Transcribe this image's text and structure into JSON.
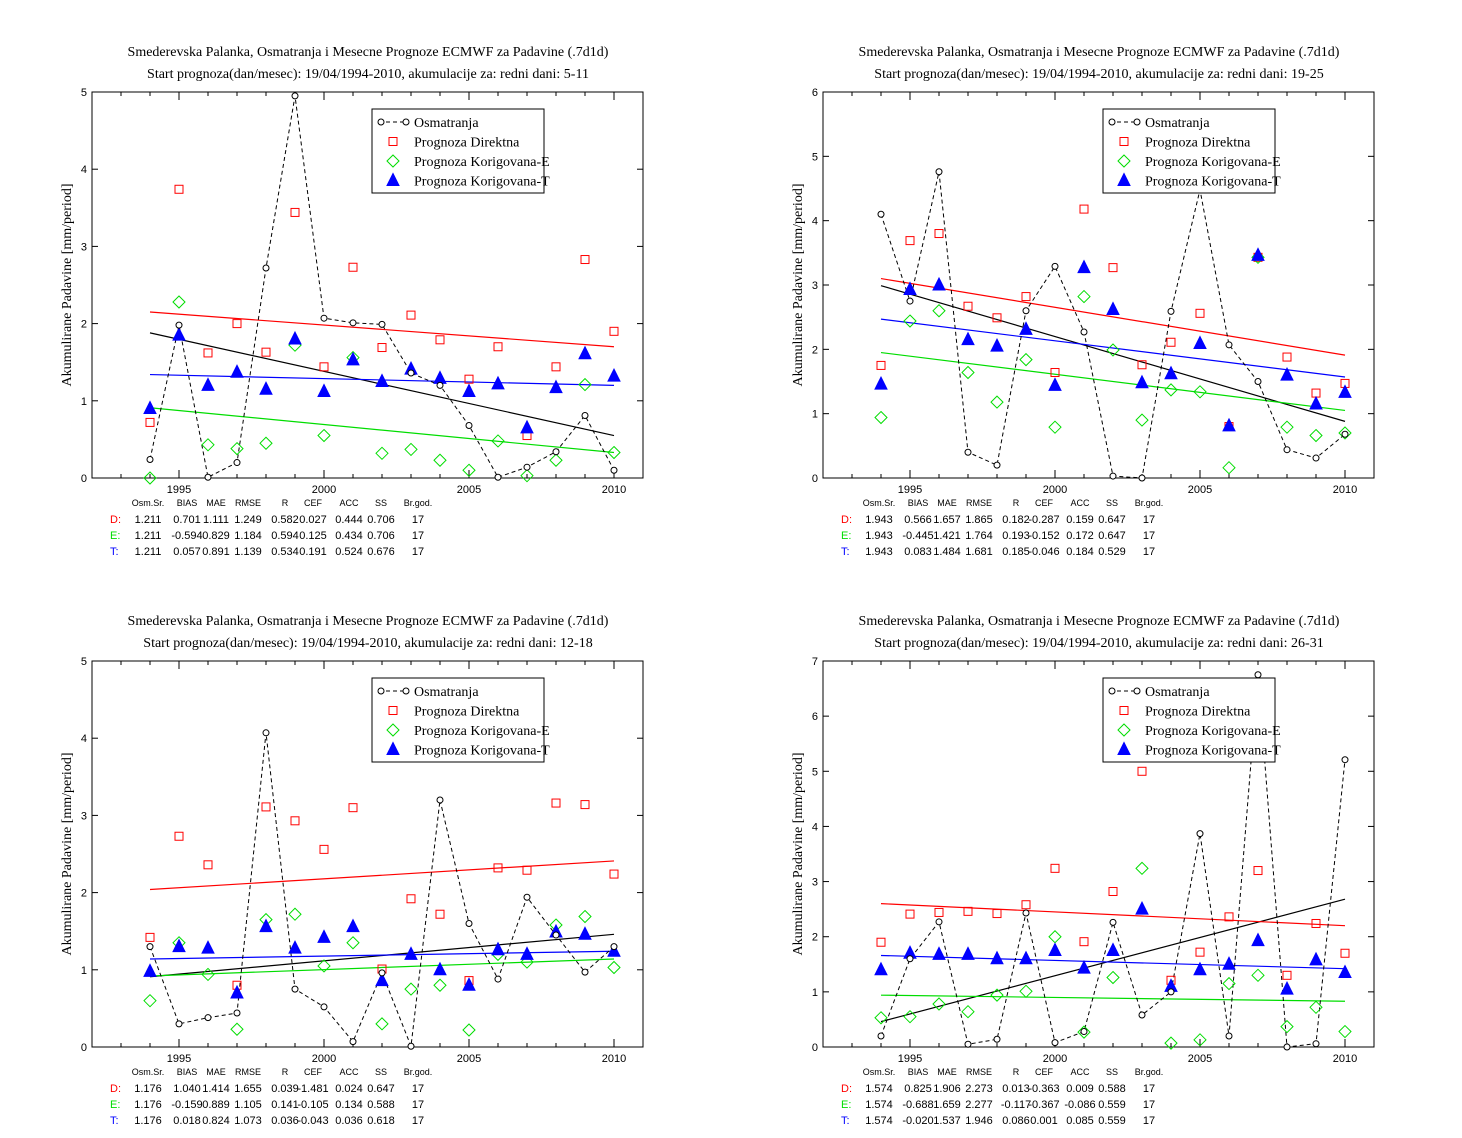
{
  "x_ticks": [
    "1995",
    "2000",
    "2005",
    "2010"
  ],
  "legend": [
    "Osmatranja",
    "Prognoza Direktna",
    "Prognoza Korigovana-E",
    "Prognoza Korigovana-T"
  ],
  "stat_headers": [
    "Osm.Sr.",
    "BIAS",
    "MAE",
    "RMSE",
    "R",
    "CEF",
    "ACC",
    "SS",
    "Br.god."
  ],
  "colors": {
    "obs": "#000000",
    "direct": "#ff0000",
    "corr_e": "#00dd00",
    "corr_t": "#0000ff"
  },
  "chart_data": [
    {
      "type": "scatter",
      "title": "Smederevska Palanka, Osmatranja i Mesecne Prognoze ECMWF za Padavine (.7d1d)",
      "subtitle": "Start prognoza(dan/mesec): 19/04/1994-2010, akumulacije za: redni dani: 5-11",
      "ylabel": "Akumulirane Padavine [mm/period]",
      "xlim": [
        1992,
        2011
      ],
      "ylim": [
        0,
        5
      ],
      "yticks": [
        "0",
        "1",
        "2",
        "3",
        "4",
        "5"
      ],
      "x": [
        1994,
        1995,
        1996,
        1997,
        1998,
        1999,
        2000,
        2001,
        2002,
        2003,
        2004,
        2005,
        2006,
        2007,
        2008,
        2009,
        2010
      ],
      "series": [
        {
          "name": "Osmatranja",
          "values": [
            0.24,
            1.98,
            0.01,
            0.2,
            2.72,
            4.95,
            2.07,
            2.01,
            1.99,
            1.36,
            1.2,
            0.68,
            0.01,
            0.14,
            0.34,
            0.81,
            0.1
          ]
        },
        {
          "name": "Prognoza Direktna",
          "values": [
            0.72,
            3.74,
            1.62,
            2.0,
            1.63,
            3.44,
            1.44,
            2.73,
            1.69,
            2.11,
            1.79,
            1.28,
            1.7,
            0.55,
            1.44,
            2.83,
            1.9
          ]
        },
        {
          "name": "Prognoza Korigovana-E",
          "values": [
            0.0,
            2.28,
            0.43,
            0.38,
            0.45,
            1.72,
            0.55,
            1.56,
            0.32,
            0.37,
            0.23,
            0.1,
            0.48,
            0.03,
            0.23,
            1.21,
            0.33
          ]
        },
        {
          "name": "Prognoza Korigovana-T",
          "values": [
            0.9,
            1.85,
            1.2,
            1.37,
            1.15,
            1.8,
            1.12,
            1.53,
            1.25,
            1.41,
            1.29,
            1.12,
            1.22,
            0.65,
            1.17,
            1.61,
            1.32
          ]
        }
      ],
      "trends": [
        [
          1.88,
          0.55
        ],
        [
          2.15,
          1.7
        ],
        [
          0.91,
          0.33
        ],
        [
          1.34,
          1.2
        ]
      ],
      "stats": [
        {
          "label": "D:",
          "values": [
            "1.211",
            "0.701",
            "1.111",
            "1.249",
            "0.582",
            "0.027",
            "0.444",
            "0.706",
            "17"
          ]
        },
        {
          "label": "E:",
          "values": [
            "1.211",
            "-0.594",
            "0.829",
            "1.184",
            "0.594",
            "0.125",
            "0.434",
            "0.706",
            "17"
          ]
        },
        {
          "label": "T:",
          "values": [
            "1.211",
            "0.057",
            "0.891",
            "1.139",
            "0.534",
            "0.191",
            "0.524",
            "0.676",
            "17"
          ]
        }
      ]
    },
    {
      "type": "scatter",
      "title": "Smederevska Palanka, Osmatranja i Mesecne Prognoze ECMWF za Padavine (.7d1d)",
      "subtitle": "Start prognoza(dan/mesec): 19/04/1994-2010, akumulacije za: redni dani: 19-25",
      "ylabel": "Akumulirane Padavine [mm/period]",
      "xlim": [
        1992,
        2011
      ],
      "ylim": [
        0,
        6
      ],
      "yticks": [
        "0",
        "1",
        "2",
        "3",
        "4",
        "5",
        "6"
      ],
      "x": [
        1994,
        1995,
        1996,
        1997,
        1998,
        1999,
        2000,
        2001,
        2002,
        2003,
        2004,
        2005,
        2006,
        2007,
        2008,
        2009,
        2010
      ],
      "series": [
        {
          "name": "Osmatranja",
          "values": [
            4.1,
            2.75,
            4.76,
            0.4,
            0.2,
            2.6,
            3.29,
            2.27,
            0.03,
            0.0,
            2.59,
            4.48,
            2.07,
            1.5,
            0.44,
            0.31,
            0.68
          ]
        },
        {
          "name": "Prognoza Direktna",
          "values": [
            1.75,
            3.69,
            3.8,
            2.67,
            2.49,
            2.82,
            1.64,
            4.18,
            3.27,
            1.76,
            2.11,
            2.56,
            0.8,
            3.43,
            1.88,
            1.32,
            1.47
          ]
        },
        {
          "name": "Prognoza Korigovana-E",
          "values": [
            0.94,
            2.44,
            2.6,
            1.64,
            1.18,
            1.84,
            0.79,
            2.82,
            1.99,
            0.9,
            1.37,
            1.34,
            0.16,
            3.43,
            0.79,
            0.66,
            0.7
          ]
        },
        {
          "name": "Prognoza Korigovana-T",
          "values": [
            1.46,
            2.93,
            3.0,
            2.15,
            2.05,
            2.31,
            1.44,
            3.27,
            2.62,
            1.48,
            1.62,
            2.09,
            0.81,
            3.46,
            1.6,
            1.15,
            1.33
          ]
        }
      ],
      "trends": [
        [
          2.99,
          0.88
        ],
        [
          3.1,
          1.91
        ],
        [
          1.95,
          1.05
        ],
        [
          2.47,
          1.57
        ]
      ],
      "stats": [
        {
          "label": "D:",
          "values": [
            "1.943",
            "0.566",
            "1.657",
            "1.865",
            "0.182",
            "-0.287",
            "0.159",
            "0.647",
            "17"
          ]
        },
        {
          "label": "E:",
          "values": [
            "1.943",
            "-0.445",
            "1.421",
            "1.764",
            "0.193",
            "-0.152",
            "0.172",
            "0.647",
            "17"
          ]
        },
        {
          "label": "T:",
          "values": [
            "1.943",
            "0.083",
            "1.484",
            "1.681",
            "0.185",
            "-0.046",
            "0.184",
            "0.529",
            "17"
          ]
        }
      ]
    },
    {
      "type": "scatter",
      "title": "Smederevska Palanka, Osmatranja i Mesecne Prognoze ECMWF za Padavine (.7d1d)",
      "subtitle": "Start prognoza(dan/mesec): 19/04/1994-2010, akumulacije za: redni dani: 12-18",
      "ylabel": "Akumulirane Padavine [mm/period]",
      "xlim": [
        1992,
        2011
      ],
      "ylim": [
        0,
        5
      ],
      "yticks": [
        "0",
        "1",
        "2",
        "3",
        "4",
        "5"
      ],
      "x": [
        1994,
        1995,
        1996,
        1997,
        1998,
        1999,
        2000,
        2001,
        2002,
        2003,
        2004,
        2005,
        2006,
        2007,
        2008,
        2009,
        2010
      ],
      "series": [
        {
          "name": "Osmatranja",
          "values": [
            1.3,
            0.3,
            0.38,
            0.44,
            4.07,
            0.75,
            0.52,
            0.07,
            0.96,
            0.01,
            3.2,
            1.6,
            0.88,
            1.94,
            1.45,
            0.97,
            1.3
          ]
        },
        {
          "name": "Prognoza Direktna",
          "values": [
            1.42,
            2.73,
            2.36,
            0.8,
            3.11,
            2.93,
            2.56,
            3.1,
            1.01,
            1.92,
            1.72,
            0.86,
            2.32,
            2.29,
            3.16,
            3.14,
            2.24
          ]
        },
        {
          "name": "Prognoza Korigovana-E",
          "values": [
            0.6,
            1.35,
            0.94,
            0.23,
            1.65,
            1.72,
            1.05,
            1.35,
            0.3,
            0.75,
            0.8,
            0.22,
            1.2,
            1.1,
            1.58,
            1.69,
            1.03
          ]
        },
        {
          "name": "Prognoza Korigovana-T",
          "values": [
            0.98,
            1.3,
            1.28,
            0.7,
            1.56,
            1.28,
            1.42,
            1.56,
            0.86,
            1.2,
            1.0,
            0.8,
            1.26,
            1.2,
            1.49,
            1.46,
            1.24
          ]
        }
      ],
      "trends": [
        [
          0.91,
          1.46
        ],
        [
          2.04,
          2.41
        ],
        [
          0.92,
          1.14
        ],
        [
          1.14,
          1.24
        ]
      ],
      "stats": [
        {
          "label": "D:",
          "values": [
            "1.176",
            "1.040",
            "1.414",
            "1.655",
            "0.039",
            "-1.481",
            "0.024",
            "0.647",
            "17"
          ]
        },
        {
          "label": "E:",
          "values": [
            "1.176",
            "-0.159",
            "0.889",
            "1.105",
            "0.141",
            "-0.105",
            "0.134",
            "0.588",
            "17"
          ]
        },
        {
          "label": "T:",
          "values": [
            "1.176",
            "0.018",
            "0.824",
            "1.073",
            "0.036",
            "-0.043",
            "0.036",
            "0.618",
            "17"
          ]
        }
      ]
    },
    {
      "type": "scatter",
      "title": "Smederevska Palanka, Osmatranja i Mesecne Prognoze ECMWF za Padavine (.7d1d)",
      "subtitle": "Start prognoza(dan/mesec): 19/04/1994-2010, akumulacije za: redni dani: 26-31",
      "ylabel": "Akumulirane Padavine [mm/period]",
      "xlim": [
        1992,
        2011
      ],
      "ylim": [
        0,
        7
      ],
      "yticks": [
        "0",
        "1",
        "2",
        "3",
        "4",
        "5",
        "6",
        "7"
      ],
      "x": [
        1994,
        1995,
        1996,
        1997,
        1998,
        1999,
        2000,
        2001,
        2002,
        2003,
        2004,
        2005,
        2006,
        2007,
        2008,
        2009,
        2010
      ],
      "series": [
        {
          "name": "Osmatranja",
          "values": [
            0.2,
            1.6,
            2.27,
            0.05,
            0.14,
            2.43,
            0.08,
            0.28,
            2.26,
            0.58,
            1.0,
            3.87,
            0.2,
            6.75,
            0.0,
            0.06,
            5.21
          ]
        },
        {
          "name": "Prognoza Direktna",
          "values": [
            1.9,
            2.41,
            2.44,
            2.46,
            2.42,
            2.58,
            3.24,
            1.91,
            2.82,
            5.0,
            1.21,
            1.72,
            2.36,
            3.2,
            1.3,
            2.24,
            1.7
          ]
        },
        {
          "name": "Prognoza Korigovana-E",
          "values": [
            0.53,
            0.55,
            0.78,
            0.64,
            0.94,
            1.01,
            2.0,
            0.27,
            1.26,
            3.24,
            0.07,
            0.13,
            1.15,
            1.3,
            0.37,
            0.72,
            0.28
          ]
        },
        {
          "name": "Prognoza Korigovana-T",
          "values": [
            1.4,
            1.7,
            1.68,
            1.68,
            1.6,
            1.6,
            1.75,
            1.43,
            1.75,
            2.5,
            1.1,
            1.4,
            1.5,
            1.93,
            1.05,
            1.58,
            1.35
          ]
        }
      ],
      "trends": [
        [
          0.46,
          2.68
        ],
        [
          2.6,
          2.2
        ],
        [
          0.94,
          0.83
        ],
        [
          1.66,
          1.42
        ]
      ],
      "stats": [
        {
          "label": "D:",
          "values": [
            "1.574",
            "0.825",
            "1.906",
            "2.273",
            "0.013",
            "-0.363",
            "0.009",
            "0.588",
            "17"
          ]
        },
        {
          "label": "E:",
          "values": [
            "1.574",
            "-0.688",
            "1.659",
            "2.277",
            "-0.117",
            "-0.367",
            "-0.086",
            "0.559",
            "17"
          ]
        },
        {
          "label": "T:",
          "values": [
            "1.574",
            "-0.020",
            "1.537",
            "1.946",
            "0.086",
            "0.001",
            "0.085",
            "0.559",
            "17"
          ]
        }
      ]
    }
  ]
}
